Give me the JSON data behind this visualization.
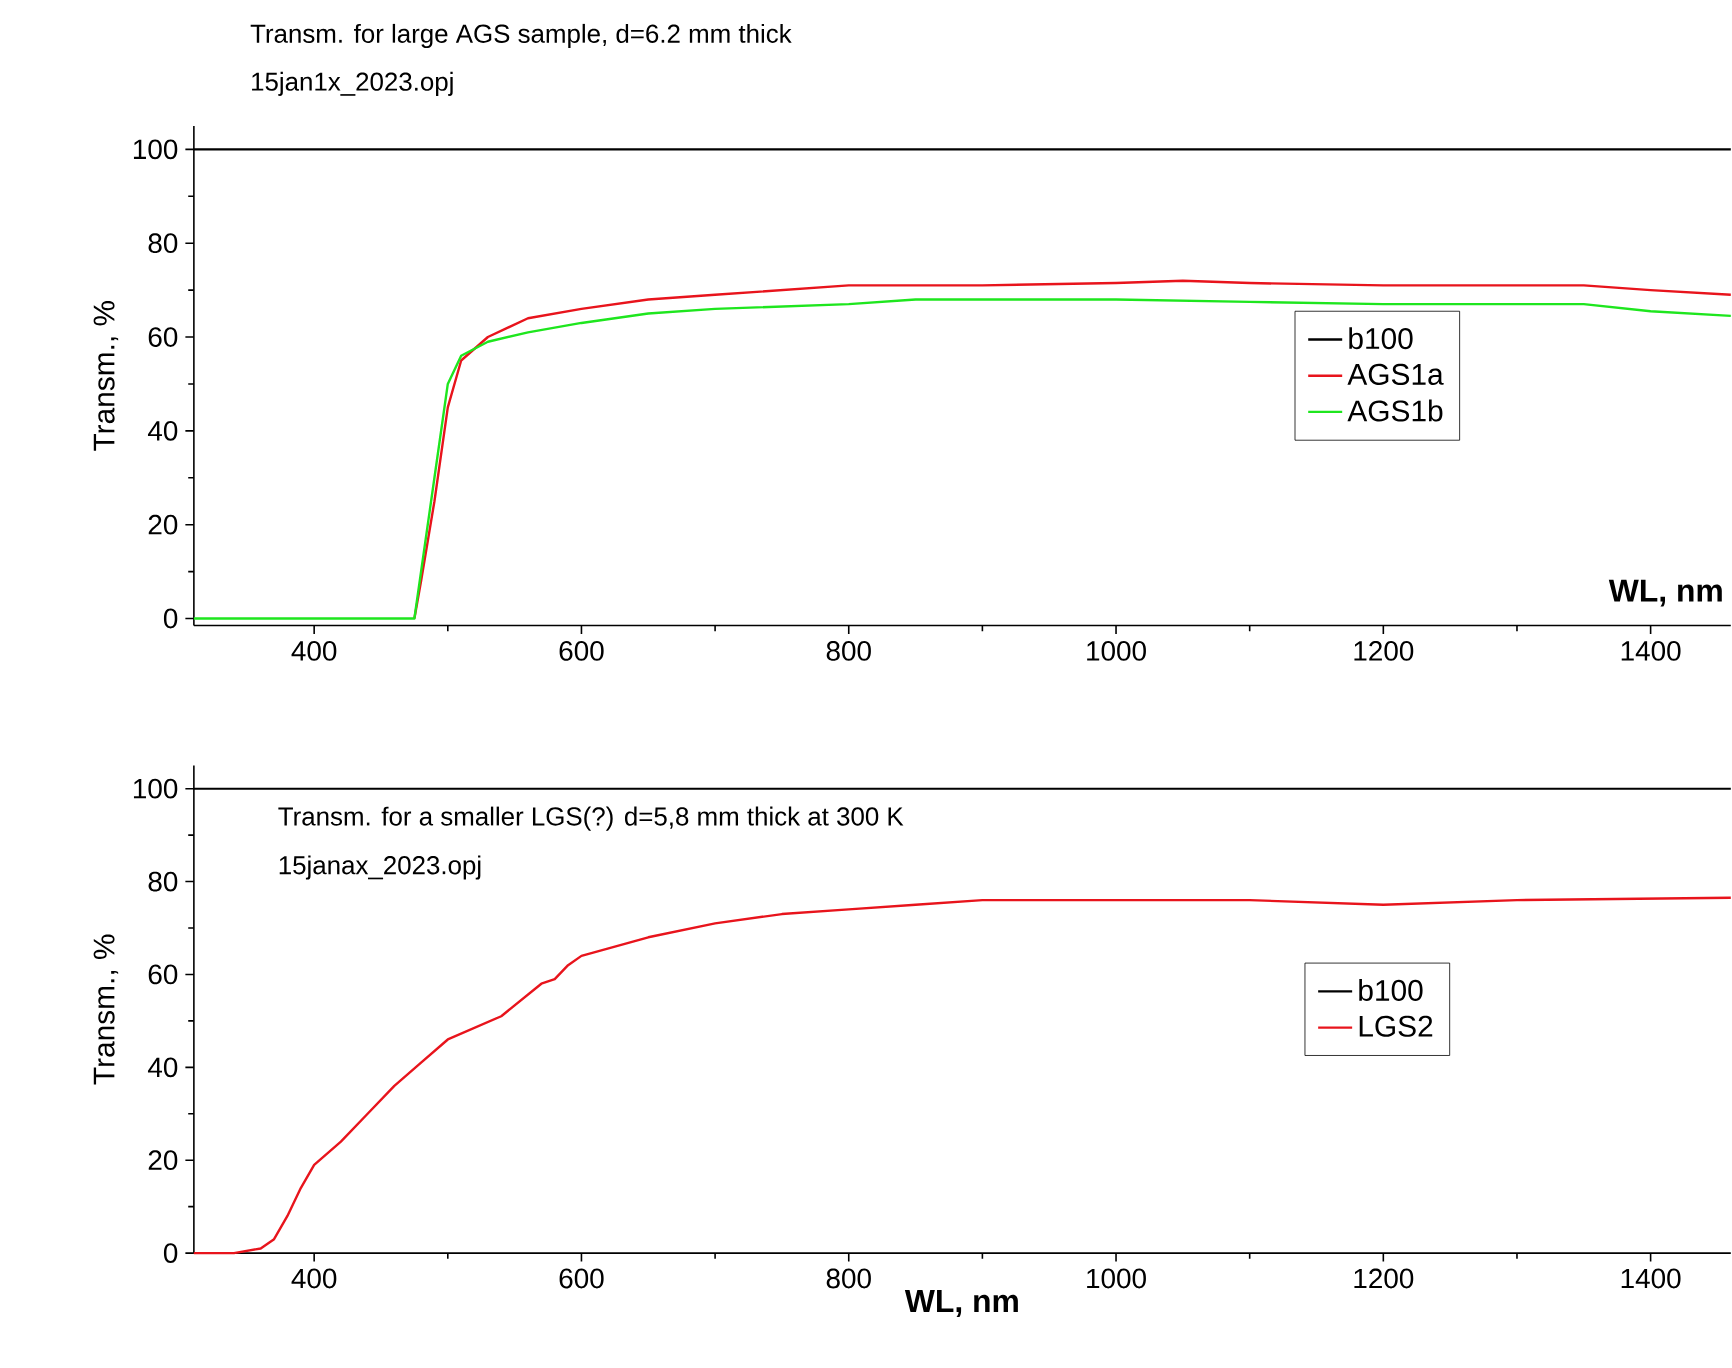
{
  "chart_data": [
    {
      "type": "line",
      "title": "Transm. for large AGS sample, d=6.2 mm thick",
      "subtitle": "15jan1x_2023.opj",
      "xlabel": "WL, nm",
      "ylabel": "Transm., %",
      "xlim": [
        310,
        1460
      ],
      "ylim": [
        -1.5,
        105
      ],
      "xticks": [
        400,
        600,
        800,
        1000,
        1200,
        1400
      ],
      "yticks": [
        0,
        20,
        40,
        60,
        80,
        100
      ],
      "legend": "right",
      "series": [
        {
          "name": "b100",
          "color": "#000000",
          "x": [
            310,
            1460
          ],
          "values": [
            100,
            100
          ]
        },
        {
          "name": "AGS1a",
          "color": "#e8141c",
          "x": [
            475,
            480,
            490,
            500,
            510,
            530,
            560,
            600,
            650,
            700,
            800,
            900,
            1000,
            1050,
            1100,
            1200,
            1350,
            1400,
            1460
          ],
          "values": [
            0,
            8,
            25,
            45,
            55,
            60,
            64,
            66,
            68,
            69,
            71,
            71,
            71.5,
            72,
            71.5,
            71,
            71,
            70,
            69
          ]
        },
        {
          "name": "AGS1b",
          "color": "#1ee61e",
          "x": [
            310,
            475,
            490,
            500,
            510,
            530,
            560,
            600,
            650,
            700,
            800,
            850,
            1000,
            1100,
            1200,
            1350,
            1400,
            1460
          ],
          "values": [
            0,
            0,
            30,
            50,
            56,
            59,
            61,
            63,
            65,
            66,
            67,
            68,
            68,
            67.5,
            67,
            67,
            65.5,
            64.5
          ]
        }
      ]
    },
    {
      "type": "line",
      "xlabel": "WL, nm",
      "ylabel": "Transm., %",
      "xlim": [
        310,
        1460
      ],
      "ylim": [
        0,
        105
      ],
      "xticks": [
        400,
        600,
        800,
        1000,
        1200,
        1400
      ],
      "yticks": [
        0,
        20,
        40,
        60,
        80,
        100
      ],
      "legend": "right",
      "annotations": [
        "Transm. for a smaller LGS(?) d=5,8 mm thick  at 300 K",
        "15janax_2023.opj"
      ],
      "series": [
        {
          "name": "b100",
          "color": "#000000",
          "x": [
            310,
            1460
          ],
          "values": [
            100,
            100
          ]
        },
        {
          "name": "LGS2",
          "color": "#e8141c",
          "x": [
            310,
            340,
            360,
            370,
            380,
            390,
            400,
            420,
            440,
            460,
            480,
            500,
            540,
            570,
            580,
            590,
            600,
            650,
            700,
            750,
            800,
            850,
            900,
            1000,
            1100,
            1200,
            1300,
            1460
          ],
          "values": [
            0,
            0,
            1,
            3,
            8,
            14,
            19,
            24,
            30,
            36,
            41,
            46,
            51,
            58,
            59,
            62,
            64,
            68,
            71,
            73,
            74,
            75,
            76,
            76,
            76,
            75,
            76,
            76.5
          ]
        }
      ]
    }
  ]
}
